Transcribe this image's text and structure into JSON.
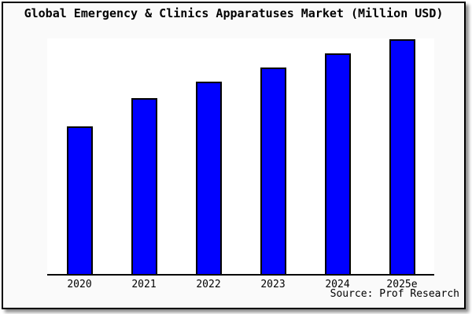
{
  "header": {
    "title": "Global Emergency & Clinics Apparatuses Market (Million USD)"
  },
  "footer": {
    "source_label": "Source: Prof Research"
  },
  "colors": {
    "bar_fill": "#0000ff",
    "bar_border": "#000000",
    "plot_background": "#ffffff",
    "canvas_background": "#fafafa",
    "frame_border": "#000000",
    "axis_line": "#000000",
    "text": "#000000"
  },
  "chart_data": {
    "type": "bar",
    "title": "Global Emergency & Clinics Apparatuses Market (Million USD)",
    "categories": [
      "2020",
      "2021",
      "2022",
      "2023",
      "2024",
      "2025e"
    ],
    "values": [
      63,
      75,
      82,
      88,
      94,
      100
    ],
    "note": "y-axis has no tick labels or gridlines in source; values are relative estimates with tallest bar (2025e) = 100",
    "xlabel": "",
    "ylabel": "",
    "ylim": [
      0,
      100
    ],
    "grid": false,
    "legend": false,
    "source": "Source: Prof Research"
  }
}
